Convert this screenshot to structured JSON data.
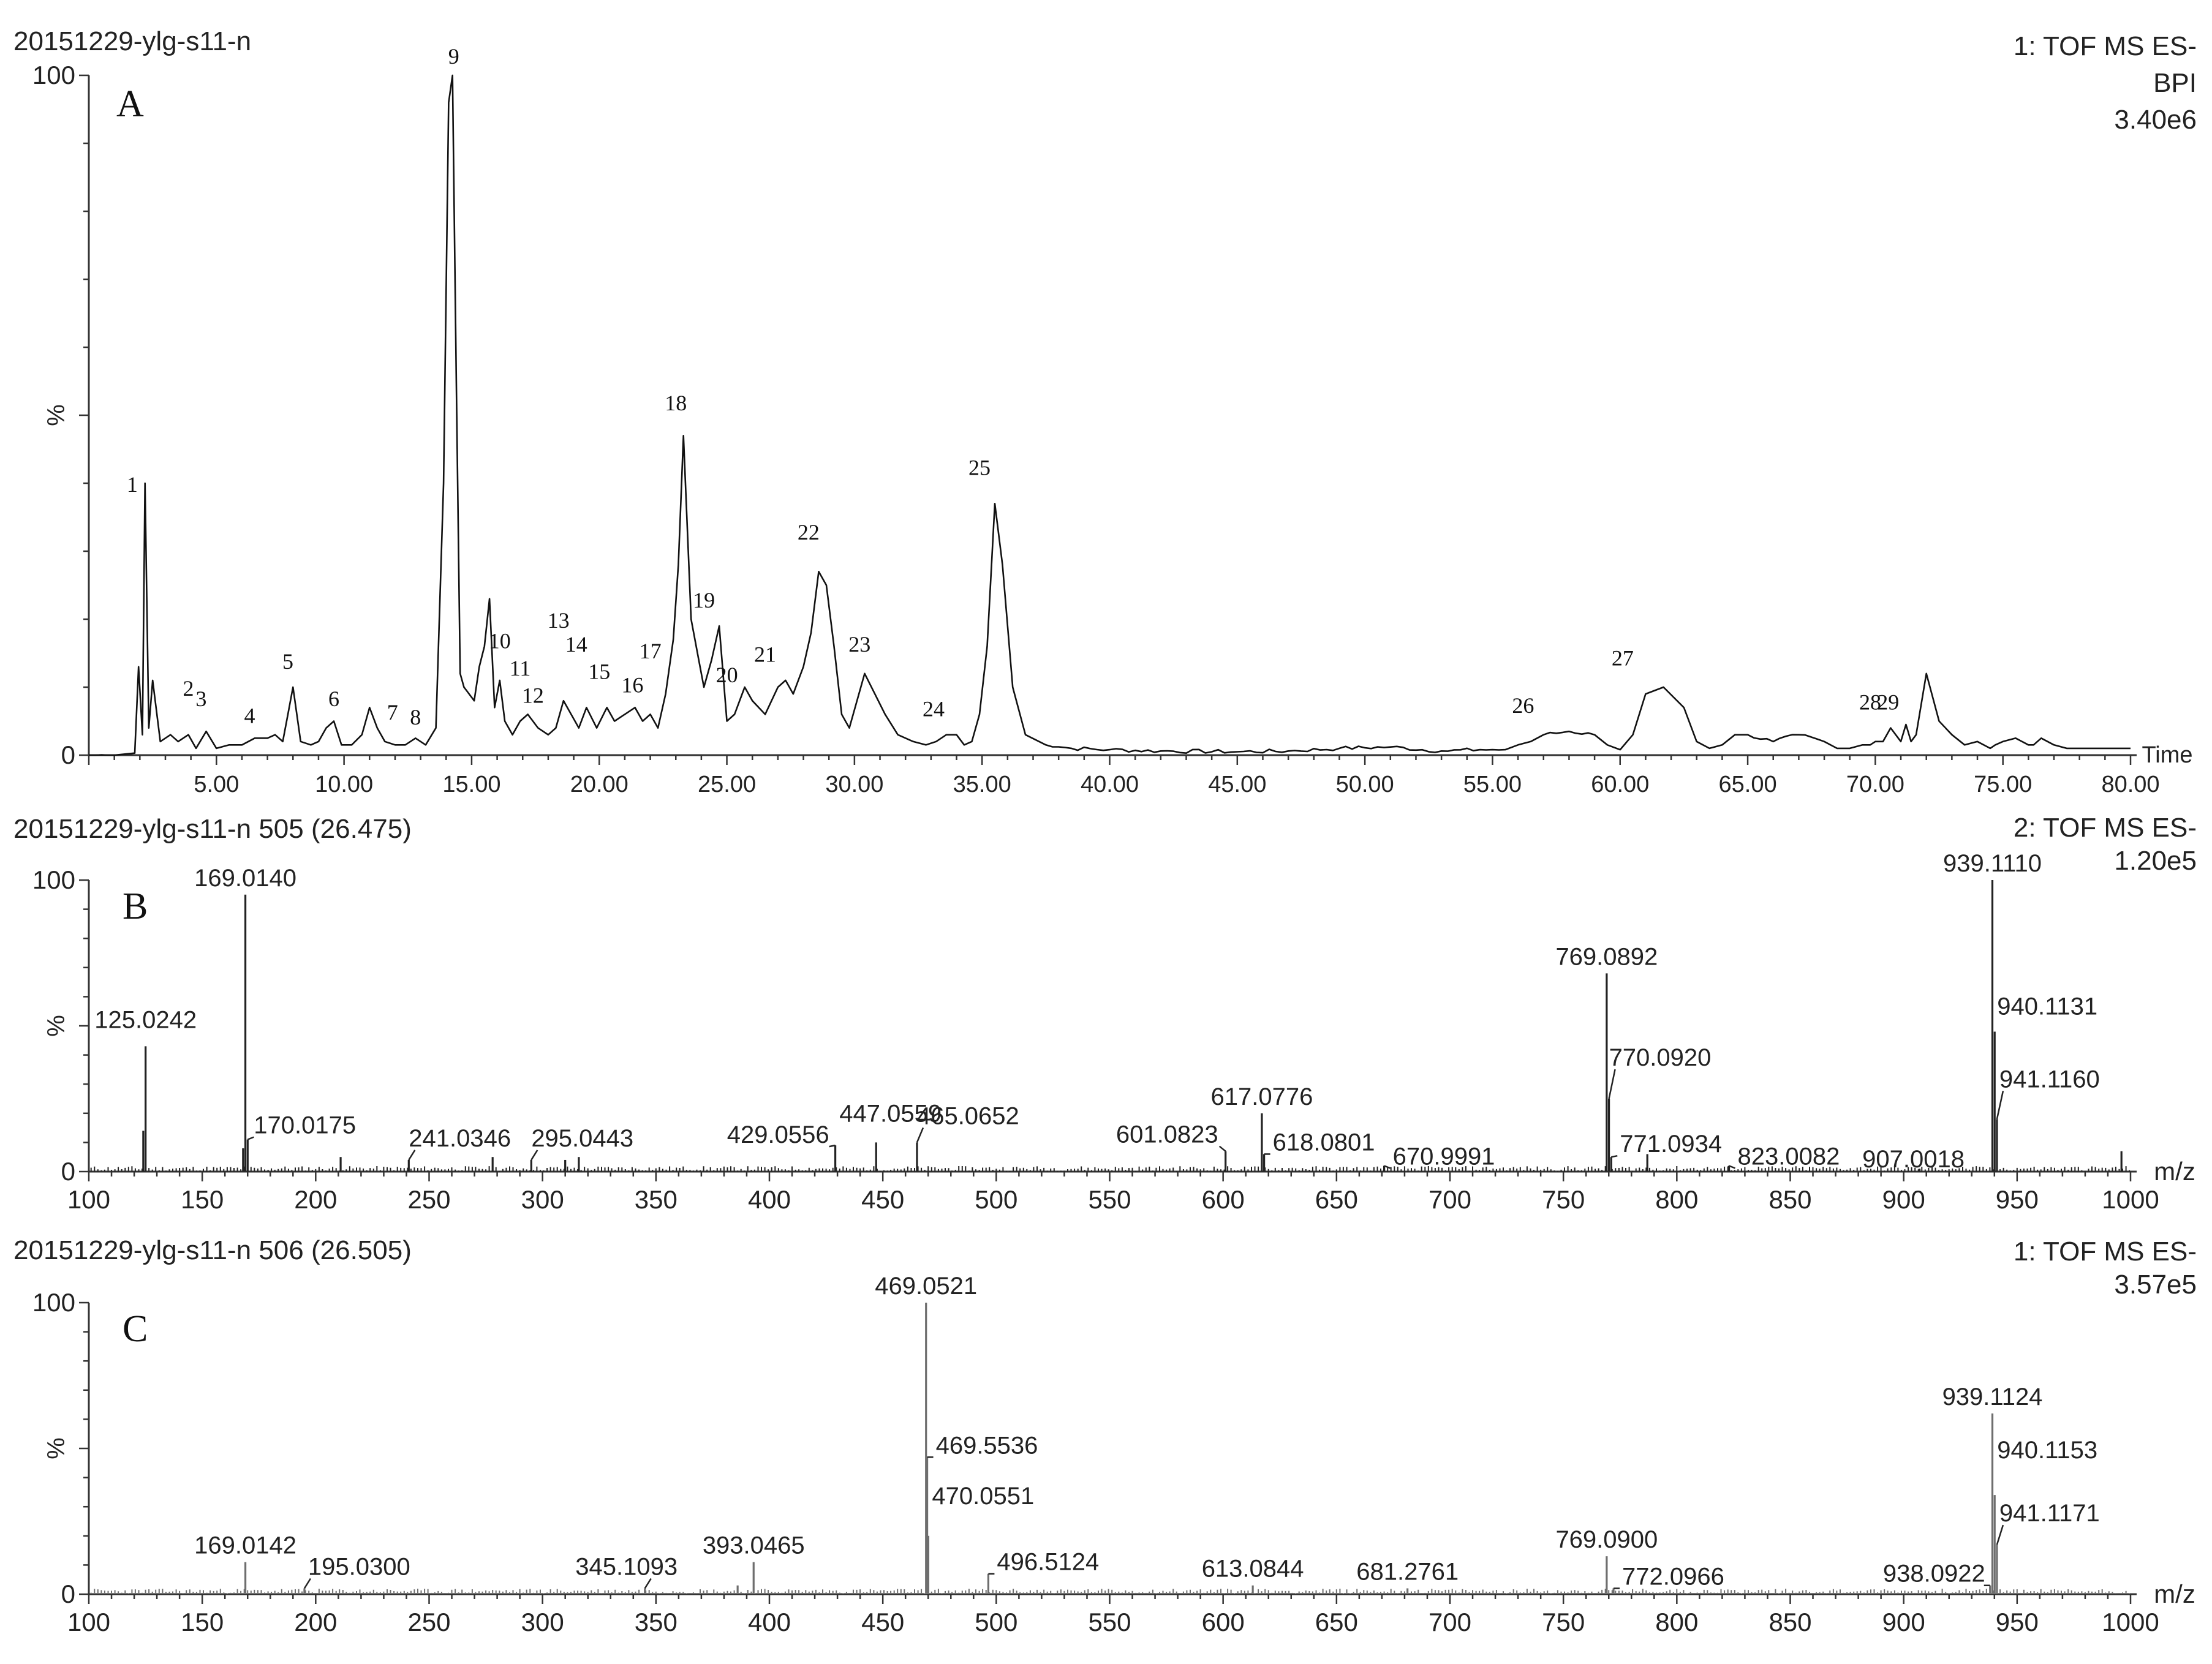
{
  "chart_data": [
    {
      "type": "line",
      "panel_letter": "A",
      "header_left": "20151229-ylg-s11-n",
      "header_right": [
        "1: TOF MS ES-",
        "BPI",
        "3.40e6"
      ],
      "xlabel": "Time",
      "ylabel": "%",
      "xlim": [
        0,
        80
      ],
      "ylim": [
        0,
        100
      ],
      "x_ticks": [
        "5.00",
        "10.00",
        "15.00",
        "20.00",
        "25.00",
        "30.00",
        "35.00",
        "40.00",
        "45.00",
        "50.00",
        "55.00",
        "60.00",
        "65.00",
        "70.00",
        "75.00",
        "80.00"
      ],
      "y_ticks": [
        "0",
        "100"
      ],
      "series": [
        {
          "x": [
            0.0,
            1.0,
            1.8,
            1.95,
            2.1,
            2.2,
            2.35,
            2.5,
            2.8,
            3.2,
            3.5,
            3.9,
            4.2,
            4.6,
            5.0,
            5.5,
            6.0,
            6.5,
            7.0,
            7.3,
            7.6,
            7.8,
            8.0,
            8.3,
            8.7,
            9.0,
            9.3,
            9.6,
            9.9,
            10.3,
            10.7,
            11.0,
            11.3,
            11.6,
            12.0,
            12.4,
            12.8,
            13.2,
            13.6,
            13.9,
            14.1,
            14.25,
            14.4,
            14.55,
            14.7,
            14.9,
            15.1,
            15.3,
            15.5,
            15.7,
            15.9,
            16.1,
            16.3,
            16.6,
            16.9,
            17.2,
            17.6,
            18.0,
            18.3,
            18.6,
            18.9,
            19.2,
            19.5,
            19.9,
            20.3,
            20.6,
            21.0,
            21.4,
            21.7,
            22.0,
            22.3,
            22.6,
            22.9,
            23.1,
            23.3,
            23.6,
            23.9,
            24.1,
            24.4,
            24.7,
            25.0,
            25.3,
            25.7,
            26.0,
            26.5,
            27.0,
            27.3,
            27.6,
            28.0,
            28.3,
            28.6,
            28.9,
            29.2,
            29.5,
            29.8,
            30.1,
            30.4,
            30.8,
            31.2,
            31.7,
            32.3,
            32.8,
            33.2,
            33.6,
            34.0,
            34.3,
            34.6,
            34.9,
            35.2,
            35.5,
            35.8,
            36.2,
            36.7,
            37.5,
            38.5,
            40.0,
            42.0,
            45.0,
            47.0,
            49.0,
            51.0,
            53.0,
            54.5,
            55.5,
            56.0,
            56.5,
            57.0,
            58.0,
            59.0,
            59.5,
            60.0,
            60.5,
            61.0,
            61.7,
            62.5,
            63.0,
            63.5,
            64.0,
            64.5,
            65.0,
            66.0,
            67.0,
            68.0,
            68.5,
            69.0,
            69.5,
            69.8,
            70.0,
            70.3,
            70.6,
            71.0,
            71.2,
            71.4,
            71.6,
            72.0,
            72.5,
            73.0,
            73.5,
            74.0,
            74.5,
            74.7,
            75.0,
            75.5,
            76.0,
            76.2,
            76.5,
            77.0,
            77.5,
            78.0,
            78.5,
            79.0,
            79.5,
            80.0
          ],
          "y": [
            0,
            0,
            0.3,
            13,
            3,
            40,
            4,
            11,
            2,
            3,
            2,
            3,
            1,
            3.5,
            1,
            1.5,
            1.5,
            2.5,
            2.5,
            3,
            2,
            6,
            10,
            2,
            1.5,
            2,
            4,
            5,
            1.5,
            1.5,
            3,
            7,
            4,
            2,
            1.5,
            1.5,
            2.5,
            1.5,
            4,
            40,
            96,
            100,
            55,
            12,
            10,
            9,
            8,
            13,
            16,
            23,
            7,
            11,
            5,
            3,
            5,
            6,
            4,
            3,
            4,
            8,
            6,
            4,
            7,
            4,
            7,
            5,
            6,
            7,
            5,
            6,
            4,
            9,
            17,
            28,
            47,
            20,
            14,
            10,
            14,
            19,
            5,
            6,
            10,
            8,
            6,
            10,
            11,
            9,
            13,
            18,
            27,
            25,
            16,
            6,
            4,
            8,
            12,
            9,
            6,
            3,
            2,
            1.5,
            2,
            3,
            3,
            1.5,
            2,
            6,
            16,
            37,
            28,
            10,
            3,
            1.5,
            1,
            0.8,
            0.6,
            0.5,
            0.6,
            1,
            1.2,
            0.6,
            0.8,
            0.8,
            1.5,
            2,
            3,
            3.5,
            3,
            1.5,
            0.8,
            3,
            9,
            10,
            7,
            2,
            1,
            1.5,
            3,
            3,
            2,
            3,
            2,
            1,
            1,
            1.5,
            1.5,
            2,
            2,
            4,
            2,
            4.5,
            2,
            3,
            12,
            5,
            3,
            1.5,
            2,
            1,
            1.5,
            2,
            2.5,
            1.5,
            1.5,
            2.5,
            1.5,
            1,
            1,
            1,
            1,
            1,
            1
          ]
        }
      ],
      "peak_labels": [
        {
          "label": "1",
          "x": 1.7,
          "y": 38
        },
        {
          "label": "2",
          "x": 3.9,
          "y": 8
        },
        {
          "label": "3",
          "x": 4.4,
          "y": 6.5
        },
        {
          "label": "4",
          "x": 6.3,
          "y": 4
        },
        {
          "label": "5",
          "x": 7.8,
          "y": 12
        },
        {
          "label": "6",
          "x": 9.6,
          "y": 6.5
        },
        {
          "label": "7",
          "x": 11.9,
          "y": 4.5
        },
        {
          "label": "8",
          "x": 12.8,
          "y": 3.8
        },
        {
          "label": "9",
          "x": 14.3,
          "y": 101
        },
        {
          "label": "10",
          "x": 16.1,
          "y": 15
        },
        {
          "label": "11",
          "x": 16.9,
          "y": 11
        },
        {
          "label": "12",
          "x": 17.4,
          "y": 7
        },
        {
          "label": "13",
          "x": 18.4,
          "y": 18
        },
        {
          "label": "14",
          "x": 19.1,
          "y": 14.5
        },
        {
          "label": "15",
          "x": 20.0,
          "y": 10.5
        },
        {
          "label": "16",
          "x": 21.3,
          "y": 8.5
        },
        {
          "label": "17",
          "x": 22.0,
          "y": 13.5
        },
        {
          "label": "18",
          "x": 23.0,
          "y": 50
        },
        {
          "label": "19",
          "x": 24.1,
          "y": 21
        },
        {
          "label": "20",
          "x": 25.0,
          "y": 10
        },
        {
          "label": "21",
          "x": 26.5,
          "y": 13
        },
        {
          "label": "22",
          "x": 28.2,
          "y": 31
        },
        {
          "label": "23",
          "x": 30.2,
          "y": 14.5
        },
        {
          "label": "24",
          "x": 33.1,
          "y": 5
        },
        {
          "label": "25",
          "x": 34.9,
          "y": 40.5
        },
        {
          "label": "26",
          "x": 56.2,
          "y": 5.5
        },
        {
          "label": "27",
          "x": 60.1,
          "y": 12.5
        },
        {
          "label": "28",
          "x": 69.8,
          "y": 6
        },
        {
          "label": "29",
          "x": 70.5,
          "y": 6
        }
      ]
    },
    {
      "type": "bar",
      "panel_letter": "B",
      "header_left": "20151229-ylg-s11-n 505 (26.475)",
      "header_right": [
        "2: TOF MS ES-",
        "1.20e5"
      ],
      "xlabel": "m/z",
      "ylabel": "%",
      "xlim": [
        100,
        1000
      ],
      "ylim": [
        0,
        100
      ],
      "x_ticks": [
        "100",
        "150",
        "200",
        "250",
        "300",
        "350",
        "400",
        "450",
        "500",
        "550",
        "600",
        "650",
        "700",
        "750",
        "800",
        "850",
        "900",
        "950",
        "1000"
      ],
      "y_ticks": [
        "0",
        "100"
      ],
      "peaks": [
        {
          "mz": 125.0242,
          "rel": 43,
          "label": "125.0242"
        },
        {
          "mz": 124.0,
          "rel": 14,
          "label": ""
        },
        {
          "mz": 169.014,
          "rel": 95,
          "label": "169.0140"
        },
        {
          "mz": 170.0175,
          "rel": 11,
          "label": "170.0175"
        },
        {
          "mz": 168.0,
          "rel": 8,
          "label": ""
        },
        {
          "mz": 211.0,
          "rel": 5,
          "label": ""
        },
        {
          "mz": 241.0346,
          "rel": 4,
          "label": "241.0346"
        },
        {
          "mz": 278.0,
          "rel": 5,
          "label": ""
        },
        {
          "mz": 295.0443,
          "rel": 4,
          "label": "295.0443"
        },
        {
          "mz": 310.0,
          "rel": 4,
          "label": ""
        },
        {
          "mz": 316.0,
          "rel": 5,
          "label": ""
        },
        {
          "mz": 429.0556,
          "rel": 9,
          "label": "429.0556"
        },
        {
          "mz": 447.0559,
          "rel": 10,
          "label": "447.0559"
        },
        {
          "mz": 465.0652,
          "rel": 10,
          "label": "465.0652"
        },
        {
          "mz": 601.0823,
          "rel": 7,
          "label": "601.0823"
        },
        {
          "mz": 617.0776,
          "rel": 20,
          "label": "617.0776"
        },
        {
          "mz": 618.0801,
          "rel": 6,
          "label": "618.0801"
        },
        {
          "mz": 670.9991,
          "rel": 2,
          "label": "670.9991"
        },
        {
          "mz": 769.0892,
          "rel": 68,
          "label": "769.0892"
        },
        {
          "mz": 770.092,
          "rel": 25,
          "label": "770.0920"
        },
        {
          "mz": 771.0934,
          "rel": 5,
          "label": "771.0934"
        },
        {
          "mz": 787.0,
          "rel": 6,
          "label": ""
        },
        {
          "mz": 823.0082,
          "rel": 2,
          "label": "823.0082"
        },
        {
          "mz": 907.0018,
          "rel": 1,
          "label": "907.0018"
        },
        {
          "mz": 939.111,
          "rel": 100,
          "label": "939.1110"
        },
        {
          "mz": 940.1131,
          "rel": 48,
          "label": "940.1131"
        },
        {
          "mz": 941.116,
          "rel": 18,
          "label": "941.1160"
        },
        {
          "mz": 996.0,
          "rel": 7,
          "label": ""
        }
      ]
    },
    {
      "type": "bar",
      "panel_letter": "C",
      "header_left": "20151229-ylg-s11-n 506 (26.505)",
      "header_right": [
        "1: TOF MS ES-",
        "3.57e5"
      ],
      "xlabel": "m/z",
      "ylabel": "%",
      "xlim": [
        100,
        1000
      ],
      "ylim": [
        0,
        100
      ],
      "x_ticks": [
        "100",
        "150",
        "200",
        "250",
        "300",
        "350",
        "400",
        "450",
        "500",
        "550",
        "600",
        "650",
        "700",
        "750",
        "800",
        "850",
        "900",
        "950",
        "1000"
      ],
      "y_ticks": [
        "0",
        "100"
      ],
      "peaks": [
        {
          "mz": 169.0142,
          "rel": 11,
          "label": "169.0142"
        },
        {
          "mz": 195.03,
          "rel": 2,
          "label": "195.0300"
        },
        {
          "mz": 345.1093,
          "rel": 2,
          "label": "345.1093"
        },
        {
          "mz": 393.0465,
          "rel": 11,
          "label": "393.0465"
        },
        {
          "mz": 386.0,
          "rel": 3,
          "label": ""
        },
        {
          "mz": 469.0521,
          "rel": 100,
          "label": "469.0521"
        },
        {
          "mz": 469.5536,
          "rel": 47,
          "label": "469.5536"
        },
        {
          "mz": 470.0551,
          "rel": 20,
          "label": "470.0551"
        },
        {
          "mz": 496.5124,
          "rel": 7,
          "label": "496.5124"
        },
        {
          "mz": 613.0844,
          "rel": 3,
          "label": "613.0844"
        },
        {
          "mz": 681.2761,
          "rel": 2,
          "label": "681.2761"
        },
        {
          "mz": 769.09,
          "rel": 13,
          "label": "769.0900"
        },
        {
          "mz": 772.0966,
          "rel": 2,
          "label": "772.0966"
        },
        {
          "mz": 938.0922,
          "rel": 3,
          "label": "938.0922"
        },
        {
          "mz": 939.1124,
          "rel": 62,
          "label": "939.1124"
        },
        {
          "mz": 940.1153,
          "rel": 34,
          "label": "940.1153"
        },
        {
          "mz": 941.1171,
          "rel": 17,
          "label": "941.1171"
        }
      ]
    }
  ]
}
